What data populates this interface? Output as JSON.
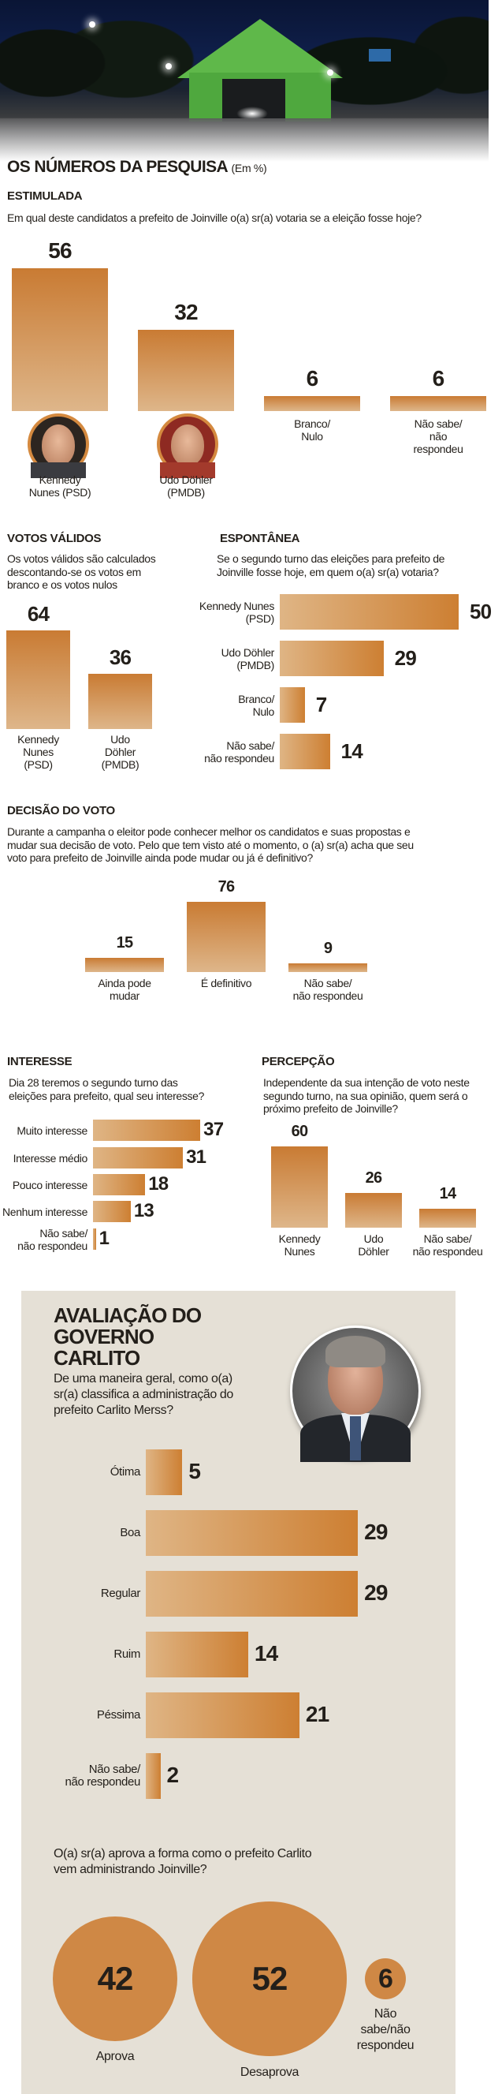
{
  "header": {
    "title": "OS NÚMEROS DA PESQUISA",
    "unit": "(Em %)"
  },
  "colors": {
    "bar_dark": "#cd7f32",
    "bar_light": "#dfb585",
    "circle": "#cf8845",
    "panel": "#e5e0d6"
  },
  "chart_data": [
    {
      "id": "estimulada",
      "type": "bar",
      "title": "ESTIMULADA",
      "question": "Em qual deste candidatos a prefeito de Joinville o(a) sr(a) votaria se a eleição fosse hoje?",
      "categories": [
        "Kennedy\nNunes (PSD)",
        "Udo Döhler\n(PMDB)",
        "Branco/\nNulo",
        "Não sabe/\nnão\nrespondeu"
      ],
      "values": [
        56,
        32,
        6,
        6
      ]
    },
    {
      "id": "validos",
      "type": "bar",
      "title": "VOTOS VÁLIDOS",
      "question": "Os votos válidos são calculados descontando-se os votos em branco e os votos nulos",
      "categories": [
        "Kennedy\nNunes\n(PSD)",
        "Udo\nDöhler\n(PMDB)"
      ],
      "values": [
        64,
        36
      ]
    },
    {
      "id": "espontanea",
      "type": "bar",
      "orientation": "horizontal",
      "title": "ESPONTÂNEA",
      "question": "Se o segundo turno das eleições para prefeito de Joinville fosse hoje, em quem o(a) sr(a) votaria?",
      "categories": [
        "Kennedy Nunes\n(PSD)",
        "Udo Döhler\n(PMDB)",
        "Branco/\nNulo",
        "Não sabe/\nnão respondeu"
      ],
      "values": [
        50,
        29,
        7,
        14
      ]
    },
    {
      "id": "decisao",
      "type": "bar",
      "title": "DECISÃO DO VOTO",
      "question": "Durante a campanha o eleitor pode conhecer melhor os candidatos e suas propostas e mudar sua decisão de voto. Pelo que tem visto até o momento, o (a) sr(a) acha que seu voto para prefeito de Joinville ainda pode mudar ou já é definitivo?",
      "categories": [
        "Ainda pode\nmudar",
        "É definitivo",
        "Não sabe/\nnão respondeu"
      ],
      "values": [
        15,
        76,
        9
      ]
    },
    {
      "id": "interesse",
      "type": "bar",
      "orientation": "horizontal",
      "title": "INTERESSE",
      "question": "Dia 28 teremos o segundo turno das eleições para prefeito, qual seu interesse?",
      "categories": [
        "Muito interesse",
        "Interesse médio",
        "Pouco interesse",
        "Nenhum interesse",
        "Não sabe/\nnão respondeu"
      ],
      "values": [
        37,
        31,
        18,
        13,
        1
      ]
    },
    {
      "id": "percepcao",
      "type": "bar",
      "title": "PERCEPÇÃO",
      "question": "Independente da sua intenção de voto neste segundo turno, na sua opinião, quem será o próximo prefeito de Joinville?",
      "categories": [
        "Kennedy\nNunes",
        "Udo\nDöhler",
        "Não sabe/\nnão respondeu"
      ],
      "values": [
        60,
        26,
        14
      ]
    },
    {
      "id": "avaliacao",
      "type": "bar",
      "orientation": "horizontal",
      "title": "AVALIAÇÃO DO GOVERNO CARLITO",
      "question": "De uma maneira geral, como o(a) sr(a) classifica a administração do prefeito Carlito Merss?",
      "categories": [
        "Ótima",
        "Boa",
        "Regular",
        "Ruim",
        "Péssima",
        "Não sabe/\nnão respondeu"
      ],
      "values": [
        5,
        29,
        29,
        14,
        21,
        2
      ]
    },
    {
      "id": "aprovacao",
      "type": "bubble",
      "question": "O(a) sr(a) aprova a forma como o prefeito Carlito vem administrando Joinville?",
      "categories": [
        "Aprova",
        "Desaprova",
        "Não\nsabe/não\nrespondeu"
      ],
      "values": [
        42,
        52,
        6
      ]
    }
  ]
}
